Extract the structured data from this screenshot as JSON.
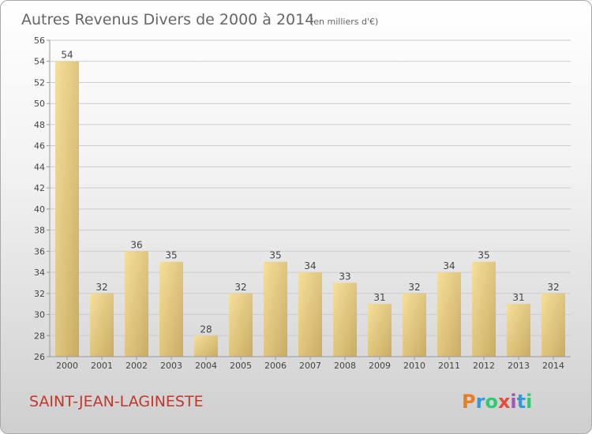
{
  "header": {
    "title": "Autres Revenus Divers de 2000 à 2014",
    "subtitle": "(en milliers d'€)"
  },
  "footer": {
    "commune": "SAINT-JEAN-LAGINESTE",
    "brand": "Proxiti"
  },
  "colors": {
    "bar_light": "#f5df9c",
    "bar_dark": "#c9ac62",
    "grid": "#cccccc",
    "commune_text": "#c0392b",
    "logo_p": "#e67e22",
    "logo_r": "#3498db",
    "logo_o": "#2ecc71",
    "logo_x": "#e74c3c",
    "logo_i": "#9b59b6",
    "logo_t": "#3498db",
    "logo_i2": "#2ecc71"
  },
  "chart_data": {
    "type": "bar",
    "title": "Autres Revenus Divers de 2000 à 2014",
    "subtitle": "(en milliers d'€)",
    "categories": [
      "2000",
      "2001",
      "2002",
      "2003",
      "2004",
      "2005",
      "2006",
      "2007",
      "2008",
      "2009",
      "2010",
      "2011",
      "2012",
      "2013",
      "2014"
    ],
    "values": [
      54,
      32,
      36,
      35,
      28,
      32,
      35,
      34,
      33,
      31,
      32,
      34,
      35,
      31,
      32
    ],
    "ylim": [
      26,
      56
    ],
    "yticks": [
      26,
      28,
      30,
      32,
      34,
      36,
      38,
      40,
      42,
      44,
      46,
      48,
      50,
      52,
      54,
      56
    ],
    "grid": true,
    "data_labels": true,
    "legend": "none"
  }
}
